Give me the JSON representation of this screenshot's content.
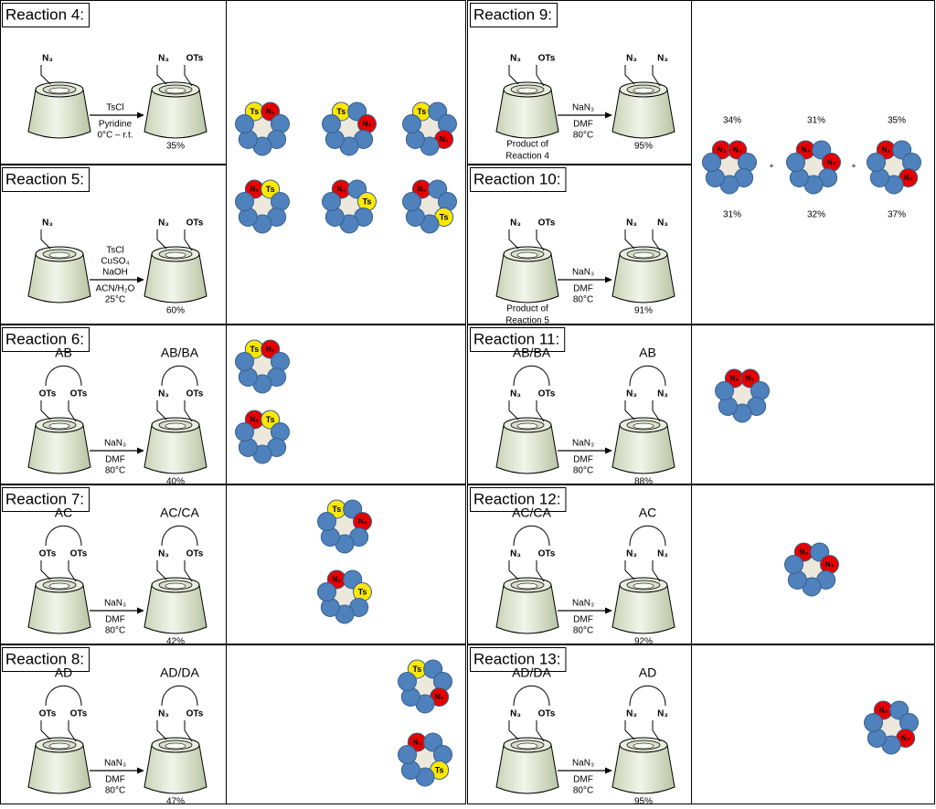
{
  "reactions": [
    {
      "title": "Reaction 4:",
      "start": {
        "left": "N₃"
      },
      "product": {
        "left": "N₃",
        "right": "OTs"
      },
      "reagents_above": [
        "TsCl"
      ],
      "reagents_below": [
        "Pyridine",
        "0°C – r.t."
      ],
      "yield": "35%"
    },
    {
      "title": "Reaction 5:",
      "start": {
        "left": "N₃"
      },
      "product": {
        "left": "N₃",
        "right": "OTs"
      },
      "reagents_above": [
        "TsCl",
        "CuSO₄",
        "NaOH"
      ],
      "reagents_below": [
        "ACN/H₂O",
        "25°C"
      ],
      "yield": "60%"
    },
    {
      "title": "Reaction 6:",
      "start": {
        "pair": "AB",
        "left": "OTs",
        "right": "OTs"
      },
      "product": {
        "pair": "AB/BA",
        "left": "N₃",
        "right": "OTs"
      },
      "reagents_above": [
        "NaN₃"
      ],
      "reagents_below": [
        "DMF",
        "80°C"
      ],
      "yield": "40%"
    },
    {
      "title": "Reaction 7:",
      "start": {
        "pair": "AC",
        "left": "OTs",
        "right": "OTs"
      },
      "product": {
        "pair": "AC/CA",
        "left": "N₃",
        "right": "OTs"
      },
      "reagents_above": [
        "NaN₃"
      ],
      "reagents_below": [
        "DMF",
        "80°C"
      ],
      "yield": "42%"
    },
    {
      "title": "Reaction 8:",
      "start": {
        "pair": "AD",
        "left": "OTs",
        "right": "OTs"
      },
      "product": {
        "pair": "AD/DA",
        "left": "N₃",
        "right": "OTs"
      },
      "reagents_above": [
        "NaN₃"
      ],
      "reagents_below": [
        "DMF",
        "80°C"
      ],
      "yield": "47%"
    },
    {
      "title": "Reaction 9:",
      "start": {
        "left": "N₃",
        "right": "OTs",
        "caption": [
          "Product of",
          "Reaction 4"
        ]
      },
      "product": {
        "left": "N₃",
        "right": "N₃"
      },
      "reagents_above": [
        "NaN₃"
      ],
      "reagents_below": [
        "DMF",
        "80°C"
      ],
      "yield": "95%"
    },
    {
      "title": "Reaction 10:",
      "start": {
        "left": "N₃",
        "right": "OTs",
        "caption": [
          "Product of",
          "Reaction 5"
        ]
      },
      "product": {
        "left": "N₃",
        "right": "N₃"
      },
      "reagents_above": [
        "NaN₃"
      ],
      "reagents_below": [
        "DMF",
        "80°C"
      ],
      "yield": "91%"
    },
    {
      "title": "Reaction 11:",
      "start": {
        "pair": "AB/BA",
        "left": "N₃",
        "right": "OTs"
      },
      "product": {
        "pair": "AB",
        "left": "N₃",
        "right": "N₃"
      },
      "reagents_above": [
        "NaN₃"
      ],
      "reagents_below": [
        "DMF",
        "80°C"
      ],
      "yield": "88%"
    },
    {
      "title": "Reaction 12:",
      "start": {
        "pair": "AC/CA",
        "left": "N₃",
        "right": "OTs"
      },
      "product": {
        "pair": "AC",
        "left": "N₃",
        "right": "N₃"
      },
      "reagents_above": [
        "NaN₃"
      ],
      "reagents_below": [
        "DMF",
        "80°C"
      ],
      "yield": "92%"
    },
    {
      "title": "Reaction 13:",
      "start": {
        "pair": "AD/DA",
        "left": "N₃",
        "right": "OTs"
      },
      "product": {
        "pair": "AD",
        "left": "N₃",
        "right": "N₃"
      },
      "reagents_above": [
        "NaN₃"
      ],
      "reagents_below": [
        "DMF",
        "80°C"
      ],
      "yield": "95%"
    }
  ],
  "ring_panels": [
    {
      "rings": [
        [
          "Ts",
          "N₃",
          null,
          null,
          null,
          null,
          null
        ],
        [
          "Ts",
          null,
          "N₃",
          null,
          null,
          null,
          null
        ],
        [
          "Ts",
          null,
          null,
          "N₃",
          null,
          null,
          null
        ],
        [
          "N₃",
          "Ts",
          null,
          null,
          null,
          null,
          null
        ],
        [
          "N₃",
          null,
          "Ts",
          null,
          null,
          null,
          null
        ],
        [
          "N₃",
          null,
          null,
          "Ts",
          null,
          null,
          null
        ]
      ]
    },
    {
      "rings": [
        [
          "Ts",
          "N₃",
          null,
          null,
          null,
          null,
          null
        ],
        [
          "N₃",
          "Ts",
          null,
          null,
          null,
          null,
          null
        ]
      ]
    },
    {
      "rings": [
        [
          "Ts",
          null,
          "N₃",
          null,
          null,
          null,
          null
        ],
        [
          "N₃",
          null,
          "Ts",
          null,
          null,
          null,
          null
        ]
      ]
    },
    {
      "rings": [
        [
          "Ts",
          null,
          null,
          "N₃",
          null,
          null,
          null
        ],
        [
          "N₃",
          null,
          null,
          "Ts",
          null,
          null,
          null
        ]
      ]
    },
    {
      "rings": [
        [
          "N₃",
          "N₃",
          null,
          null,
          null,
          null,
          null
        ],
        [
          "N₃",
          null,
          "N₃",
          null,
          null,
          null,
          null
        ],
        [
          "N₃",
          null,
          null,
          "N₃",
          null,
          null,
          null
        ]
      ],
      "top_labels": [
        "34%",
        "31%",
        "35%"
      ],
      "bottom_labels": [
        "31%",
        "32%",
        "37%"
      ],
      "plus": "+"
    },
    {
      "rings": [
        [
          "N₃",
          "N₃",
          null,
          null,
          null,
          null,
          null
        ]
      ]
    },
    {
      "rings": [
        [
          "N₃",
          null,
          "N₃",
          null,
          null,
          null,
          null
        ]
      ]
    },
    {
      "rings": [
        [
          "N₃",
          null,
          null,
          "N₃",
          null,
          null,
          null
        ]
      ]
    }
  ]
}
